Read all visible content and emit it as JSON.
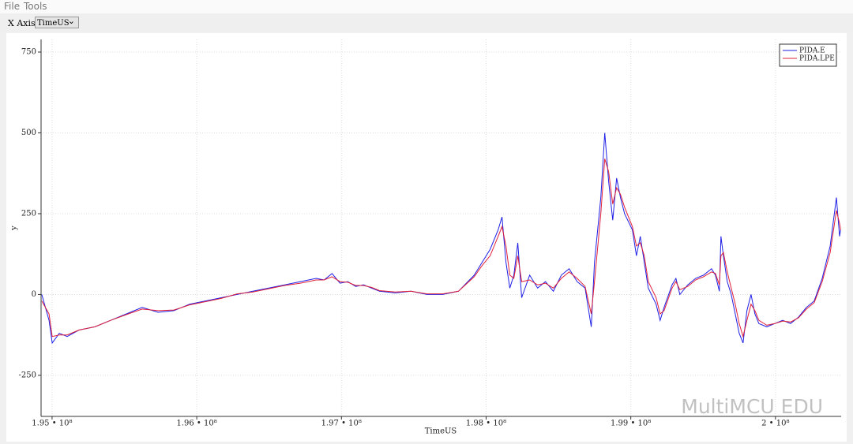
{
  "menu": [
    "File",
    "Tools"
  ],
  "toolbar": {
    "label": "X Axis",
    "selected": "TimeUS"
  },
  "watermark": "MultiMCU EDU",
  "chart_data": {
    "type": "line",
    "xlabel": "TimeUS",
    "ylabel": "y",
    "x": [
      194929000,
      194979000,
      195001000,
      195050000,
      195104000,
      195186000,
      195296000,
      195405000,
      195514000,
      195623000,
      195733000,
      195842000,
      195951000,
      196061000,
      196170000,
      196279000,
      196388000,
      196498000,
      196607000,
      196716000,
      196826000,
      196880000,
      196935000,
      196990000,
      197044000,
      197099000,
      197153000,
      197208000,
      197263000,
      197372000,
      197481000,
      197591000,
      197700000,
      197809000,
      197918000,
      197973000,
      198028000,
      198083000,
      198110000,
      198137000,
      198164000,
      198192000,
      198219000,
      198246000,
      198301000,
      198356000,
      198410000,
      198465000,
      198520000,
      198574000,
      198629000,
      198684000,
      198727000,
      198749000,
      198793000,
      198820000,
      198847000,
      198875000,
      198902000,
      198929000,
      198957000,
      199011000,
      199039000,
      199066000,
      199093000,
      199121000,
      199175000,
      199203000,
      199230000,
      199285000,
      199312000,
      199339000,
      199394000,
      199448000,
      199503000,
      199558000,
      199585000,
      199612000,
      199623000,
      199640000,
      199667000,
      199694000,
      199722000,
      199749000,
      199776000,
      199803000,
      199831000,
      199858000,
      199885000,
      199940000,
      199995000,
      200050000,
      200104000,
      200159000,
      200214000,
      200268000,
      200323000,
      200378000,
      200421000,
      200443000,
      200450000
    ],
    "series": [
      {
        "name": "PIDA.E",
        "color": "#1f1fe6",
        "values": [
          0,
          -80,
          -150,
          -120,
          -130,
          -110,
          -100,
          -80,
          -60,
          -40,
          -55,
          -50,
          -30,
          -20,
          -10,
          0,
          10,
          20,
          30,
          40,
          50,
          45,
          65,
          35,
          40,
          25,
          30,
          20,
          10,
          5,
          10,
          0,
          0,
          10,
          60,
          100,
          140,
          200,
          240,
          100,
          20,
          60,
          160,
          -10,
          60,
          20,
          40,
          10,
          60,
          80,
          40,
          20,
          -100,
          100,
          300,
          500,
          350,
          230,
          360,
          300,
          250,
          200,
          120,
          180,
          100,
          20,
          -30,
          -80,
          -40,
          30,
          50,
          0,
          30,
          50,
          60,
          80,
          60,
          10,
          180,
          120,
          40,
          0,
          -60,
          -120,
          -150,
          -50,
          0,
          -60,
          -90,
          -100,
          -90,
          -80,
          -90,
          -70,
          -40,
          -20,
          50,
          150,
          300,
          180,
          200
        ]
      },
      {
        "name": "PIDA.LPE",
        "color": "#e0203a",
        "values": [
          -20,
          -60,
          -130,
          -125,
          -125,
          -110,
          -100,
          -80,
          -62,
          -45,
          -50,
          -48,
          -32,
          -22,
          -12,
          2,
          8,
          18,
          28,
          35,
          45,
          45,
          55,
          40,
          38,
          28,
          28,
          22,
          12,
          8,
          10,
          2,
          2,
          10,
          55,
          90,
          120,
          180,
          210,
          150,
          60,
          50,
          120,
          40,
          45,
          30,
          35,
          20,
          50,
          70,
          50,
          25,
          -60,
          40,
          250,
          420,
          380,
          280,
          330,
          310,
          270,
          210,
          150,
          160,
          120,
          40,
          -10,
          -60,
          -50,
          20,
          40,
          15,
          25,
          45,
          55,
          70,
          65,
          30,
          120,
          130,
          70,
          20,
          -30,
          -90,
          -130,
          -80,
          -30,
          -50,
          -80,
          -95,
          -90,
          -82,
          -85,
          -72,
          -45,
          -25,
          40,
          130,
          260,
          220,
          200
        ]
      }
    ],
    "xlim": [
      194924000,
      200454000
    ],
    "xticks": [
      {
        "value": 195000000,
        "label": "1.95 • 10⁸"
      },
      {
        "value": 196000000,
        "label": "1.96 • 10⁸"
      },
      {
        "value": 197000000,
        "label": "1.97 • 10⁸"
      },
      {
        "value": 198000000,
        "label": "1.98 • 10⁸"
      },
      {
        "value": 199000000,
        "label": "1.99 • 10⁸"
      },
      {
        "value": 200000000,
        "label": "2 • 10⁸"
      }
    ],
    "ylim": [
      -377,
      789
    ],
    "yticks": [
      -250,
      0,
      250,
      500,
      750
    ],
    "grid": true,
    "legend": "upper right"
  }
}
